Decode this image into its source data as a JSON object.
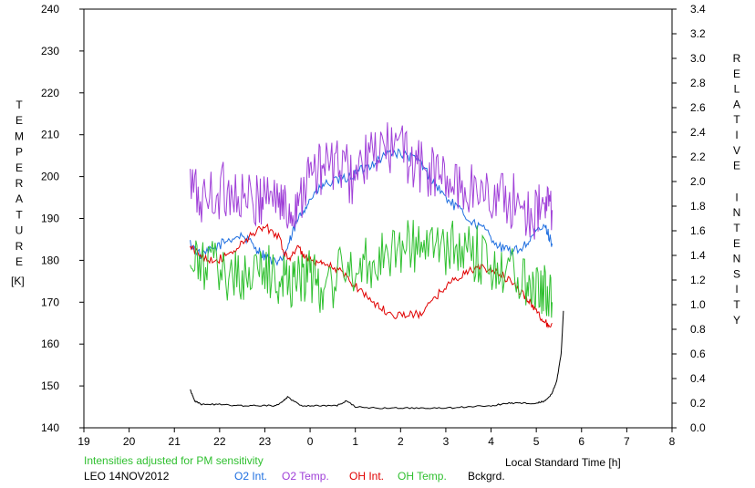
{
  "colors": {
    "o2_intensity": "#1f6fe0",
    "o2_temperature": "#a040d8",
    "oh_intensity": "#e00000",
    "oh_temperature": "#30c030",
    "background": "#000000",
    "note": "#30c030",
    "axis": "#000000"
  },
  "chart_data": {
    "type": "line",
    "left_axis_label": "TEMPERATURE",
    "left_axis_unit": "[K]",
    "right_axis_label": "RELATIVE INTENSITY",
    "xlabel": "Local Standard Time [h]",
    "station_date": "LEO 14NOV2012",
    "note": "Intensities adjusted for PM sensitivity",
    "xlim": [
      19,
      32
    ],
    "ylim_left": [
      140,
      240
    ],
    "ylim_right": [
      0.0,
      3.4
    ],
    "x_ticks": [
      "19",
      "20",
      "21",
      "22",
      "23",
      "0",
      "1",
      "2",
      "3",
      "4",
      "5",
      "6",
      "7",
      "8"
    ],
    "y_left_ticks": [
      "140",
      "150",
      "160",
      "170",
      "180",
      "190",
      "200",
      "210",
      "220",
      "230",
      "240"
    ],
    "y_right_ticks": [
      "0.0",
      "0.2",
      "0.4",
      "0.6",
      "0.8",
      "1.0",
      "1.2",
      "1.4",
      "1.6",
      "1.8",
      "2.0",
      "2.2",
      "2.4",
      "2.6",
      "2.8",
      "3.0",
      "3.2",
      "3.4"
    ],
    "grid": false,
    "legend_position": "bottom",
    "series": [
      {
        "name": "O2 Int.",
        "axis": "left",
        "x": [
          21.35,
          21.6,
          21.9,
          22.2,
          22.5,
          22.8,
          23.0,
          23.3,
          23.5,
          23.7,
          23.9,
          24.1,
          24.3,
          24.6,
          24.9,
          25.2,
          25.5,
          25.8,
          26.1,
          26.4,
          26.7,
          27.0,
          27.3,
          27.6,
          27.9,
          28.2,
          28.5,
          28.8,
          29.0,
          29.2,
          29.35
        ],
        "values": [
          184,
          181,
          183,
          185,
          186,
          183,
          181,
          179,
          183,
          189,
          193,
          196,
          198,
          199,
          200,
          202,
          204,
          206,
          205,
          204,
          199,
          195,
          192,
          189,
          187,
          183,
          182,
          184,
          187,
          188,
          184
        ]
      },
      {
        "name": "O2 Temp.",
        "axis": "left",
        "x": [
          21.35,
          21.6,
          21.9,
          22.2,
          22.5,
          22.8,
          23.0,
          23.3,
          23.5,
          23.7,
          23.9,
          24.1,
          24.3,
          24.6,
          24.9,
          25.2,
          25.5,
          25.8,
          26.1,
          26.4,
          26.7,
          27.0,
          27.3,
          27.6,
          27.9,
          28.2,
          28.5,
          28.8,
          29.0,
          29.2,
          29.35
        ],
        "values": [
          198,
          194,
          196,
          197,
          195,
          193,
          197,
          195,
          191,
          194,
          199,
          201,
          202,
          203,
          200,
          203,
          206,
          207,
          206,
          202,
          201,
          199,
          197,
          197,
          196,
          195,
          194,
          192,
          191,
          193,
          192
        ]
      },
      {
        "name": "OH Int.",
        "axis": "left",
        "x": [
          21.35,
          21.6,
          21.9,
          22.2,
          22.5,
          22.8,
          23.0,
          23.3,
          23.5,
          23.7,
          23.9,
          24.1,
          24.3,
          24.6,
          24.9,
          25.2,
          25.5,
          25.8,
          26.1,
          26.4,
          26.7,
          27.0,
          27.3,
          27.6,
          27.9,
          28.2,
          28.5,
          28.8,
          29.0,
          29.2,
          29.35
        ],
        "values": [
          183,
          181,
          180,
          181,
          184,
          187,
          188,
          186,
          180,
          183,
          181,
          179,
          179,
          178,
          175,
          172,
          169,
          167,
          167,
          167,
          170,
          174,
          176,
          178,
          178,
          177,
          174,
          171,
          168,
          165,
          165
        ]
      },
      {
        "name": "OH Temp.",
        "axis": "left",
        "x": [
          21.35,
          21.6,
          21.9,
          22.2,
          22.5,
          22.8,
          23.0,
          23.3,
          23.5,
          23.7,
          23.9,
          24.1,
          24.3,
          24.6,
          24.9,
          25.2,
          25.5,
          25.8,
          26.1,
          26.4,
          26.7,
          27.0,
          27.3,
          27.6,
          27.9,
          28.2,
          28.5,
          28.8,
          29.0,
          29.2,
          29.35
        ],
        "values": [
          177,
          179,
          178,
          177,
          176,
          178,
          177,
          176,
          175,
          177,
          176,
          175,
          174,
          176,
          178,
          179,
          181,
          183,
          183,
          184,
          183,
          182,
          183,
          182,
          180,
          179,
          177,
          176,
          175,
          173,
          170
        ]
      },
      {
        "name": "Bckgrd.",
        "axis": "right",
        "x": [
          21.35,
          21.45,
          21.6,
          22.0,
          22.4,
          22.8,
          23.2,
          23.35,
          23.5,
          23.8,
          24.2,
          24.6,
          24.8,
          25.0,
          25.5,
          26.0,
          26.5,
          27.0,
          27.5,
          28.0,
          28.4,
          28.7,
          29.0,
          29.2,
          29.35,
          29.45,
          29.55,
          29.6
        ],
        "values": [
          0.31,
          0.22,
          0.19,
          0.19,
          0.18,
          0.18,
          0.18,
          0.2,
          0.25,
          0.18,
          0.18,
          0.18,
          0.22,
          0.17,
          0.16,
          0.16,
          0.16,
          0.16,
          0.17,
          0.18,
          0.2,
          0.2,
          0.2,
          0.22,
          0.28,
          0.38,
          0.6,
          0.95
        ]
      }
    ]
  }
}
